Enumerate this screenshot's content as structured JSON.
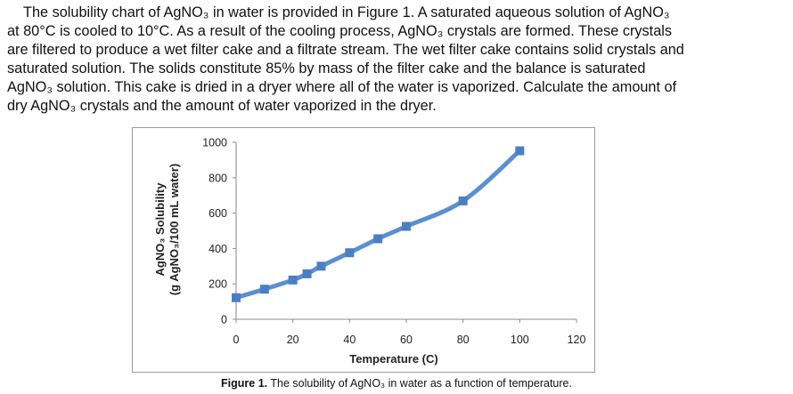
{
  "problem": {
    "line1": "The solubility chart of AgNO₃ in water is provided in Figure 1. A saturated aqueous solution of AgNO₃",
    "line2": "at 80°C is cooled to 10°C. As a result of the cooling process, AgNO₃ crystals are formed. These crystals",
    "line3": "are filtered to produce a wet filter cake and a filtrate stream. The wet filter cake contains solid crystals and",
    "line4": "saturated solution. The solids constitute 85% by mass of the filter cake and the balance is saturated",
    "line5": "AgNO₃ solution. This cake is dried in a dryer where all of the water is vaporized. Calculate the amount of",
    "line6": "dry AgNO₃ crystals and the amount of water vaporized in the dryer."
  },
  "caption": {
    "label": "Figure 1.",
    "text": " The solubility of AgNO₃ in water as a function of temperature."
  },
  "chart_data": {
    "type": "line",
    "xlabel": "Temperature (C)",
    "ylabel_line1": "AgNO₃ Solubility",
    "ylabel_line2": "(g AgNO₃/100 mL water)",
    "xlim": [
      0,
      120
    ],
    "ylim": [
      0,
      1000
    ],
    "x_ticks": [
      0,
      20,
      40,
      60,
      80,
      100,
      120
    ],
    "y_ticks": [
      0,
      200,
      400,
      600,
      800,
      1000
    ],
    "grid": false,
    "series": [
      {
        "color": "#5b8fd0",
        "points": [
          {
            "x": 0,
            "y": 122
          },
          {
            "x": 10,
            "y": 170
          },
          {
            "x": 20,
            "y": 222
          },
          {
            "x": 25,
            "y": 257
          },
          {
            "x": 30,
            "y": 300
          },
          {
            "x": 40,
            "y": 376
          },
          {
            "x": 50,
            "y": 455
          },
          {
            "x": 60,
            "y": 525
          },
          {
            "x": 80,
            "y": 669
          },
          {
            "x": 100,
            "y": 952
          }
        ]
      }
    ]
  }
}
